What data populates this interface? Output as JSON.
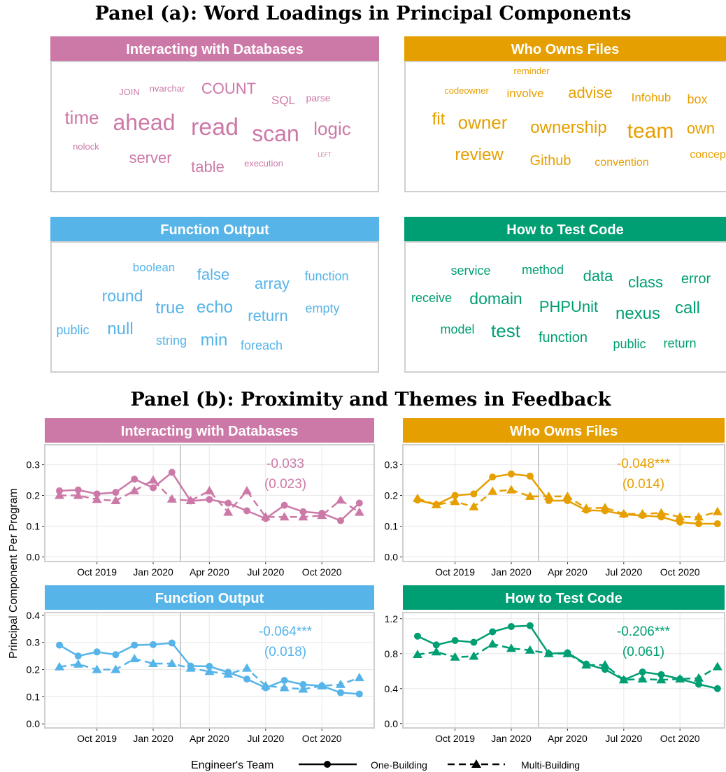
{
  "panel_a_title": "Panel (a): Word Loadings in Principal Components",
  "word_clouds": [
    {
      "title": "Interacting with Databases",
      "color": "#cc79a7",
      "words": [
        "JOIN",
        "nvarchar",
        "COUNT",
        "SQL",
        "parse",
        "time",
        "ahead",
        "read",
        "scan",
        "logic",
        "nolock",
        "server",
        "table",
        "execution",
        "LEFT"
      ]
    },
    {
      "title": "Who Owns Files",
      "color": "#e69f00",
      "words": [
        "reminder",
        "codeowner",
        "involve",
        "advise",
        "Infohub",
        "box",
        "fit",
        "owner",
        "ownership",
        "team",
        "own",
        "review",
        "Github",
        "convention",
        "concep"
      ]
    },
    {
      "title": "Function Output",
      "color": "#56b4e9",
      "words": [
        "boolean",
        "false",
        "array",
        "function",
        "round",
        "true",
        "echo",
        "return",
        "empty",
        "public",
        "null",
        "string",
        "min",
        "foreach"
      ]
    },
    {
      "title": "How to Test Code",
      "color": "#009e73",
      "words": [
        "service",
        "method",
        "data",
        "class",
        "error",
        "receive",
        "domain",
        "PHPUnit",
        "nexus",
        "call",
        "model",
        "test",
        "function",
        "public",
        "return"
      ]
    }
  ],
  "panel_b_title": "Panel (b): Proximity and Themes in Feedback",
  "y_label": "Principal Component Per Program",
  "legend_title": "Engineer's Team",
  "chart_data": [
    {
      "type": "line",
      "title": "Interacting with Databases",
      "color": "#cc79a7",
      "categories": [
        null,
        null,
        "Oct 2019",
        null,
        null,
        "Jan 2020",
        null,
        null,
        "Apr 2020",
        null,
        null,
        "Jul 2020",
        null,
        null,
        "Oct 2020",
        null,
        null
      ],
      "series": [
        {
          "name": "One-Building",
          "color": "#cc79a7",
          "values": [
            0.215,
            0.218,
            0.205,
            0.21,
            0.253,
            0.225,
            0.275,
            0.182,
            0.187,
            0.175,
            0.15,
            0.125,
            0.168,
            0.147,
            0.142,
            0.118,
            0.175
          ]
        },
        {
          "name": "Multi-Building",
          "color": "#cc79a7",
          "values": [
            0.2,
            0.2,
            0.187,
            0.183,
            0.215,
            0.25,
            0.188,
            0.183,
            0.215,
            0.145,
            0.215,
            0.13,
            0.13,
            0.13,
            0.135,
            0.185,
            0.145
          ]
        }
      ],
      "ylim": [
        -0.015,
        0.365
      ],
      "yticks": [
        {
          "value": 0,
          "label": "0.0"
        },
        0.1,
        0.2,
        0.3
      ],
      "grid": true,
      "annotations": [
        "-0.033",
        "(0.023)"
      ]
    },
    {
      "type": "line",
      "title": "Who Owns Files",
      "color": "#e69f00",
      "categories": [
        null,
        null,
        "Oct 2019",
        null,
        null,
        "Jan 2020",
        null,
        null,
        "Apr 2020",
        null,
        null,
        "Jul 2020",
        null,
        null,
        "Oct 2020",
        null,
        null
      ],
      "series": [
        {
          "name": "One-Building",
          "color": "#e69f00",
          "values": [
            0.185,
            0.17,
            0.2,
            0.205,
            0.26,
            0.27,
            0.263,
            0.183,
            0.183,
            0.152,
            0.15,
            0.138,
            0.135,
            0.13,
            0.113,
            0.108,
            0.108
          ]
        },
        {
          "name": "Multi-Building",
          "color": "#e69f00",
          "values": [
            0.19,
            0.17,
            0.18,
            0.163,
            0.213,
            0.218,
            0.197,
            0.197,
            0.197,
            0.158,
            0.16,
            0.14,
            0.14,
            0.143,
            0.13,
            0.13,
            0.147
          ]
        }
      ],
      "ylim": [
        -0.015,
        0.365
      ],
      "yticks": [
        {
          "value": 0,
          "label": "0.0"
        },
        0.1,
        0.2,
        0.3
      ],
      "grid": true,
      "annotations": [
        "-0.048***",
        "(0.014)"
      ]
    },
    {
      "type": "line",
      "title": "Function Output",
      "color": "#56b4e9",
      "categories": [
        null,
        null,
        "Oct 2019",
        null,
        null,
        "Jan 2020",
        null,
        null,
        "Apr 2020",
        null,
        null,
        "Jul 2020",
        null,
        null,
        "Oct 2020",
        null,
        null
      ],
      "series": [
        {
          "name": "One-Building",
          "color": "#56b4e9",
          "values": [
            0.29,
            0.25,
            0.265,
            0.255,
            0.29,
            0.292,
            0.298,
            0.213,
            0.212,
            0.19,
            0.165,
            0.133,
            0.16,
            0.145,
            0.14,
            0.115,
            0.11
          ]
        },
        {
          "name": "Multi-Building",
          "color": "#56b4e9",
          "values": [
            0.21,
            0.22,
            0.2,
            0.2,
            0.24,
            0.222,
            0.222,
            0.205,
            0.193,
            0.183,
            0.205,
            0.14,
            0.133,
            0.128,
            0.14,
            0.145,
            0.17
          ]
        }
      ],
      "ylim": [
        -0.015,
        0.41
      ],
      "yticks": [
        {
          "value": 0,
          "label": "0.0"
        },
        0.1,
        0.2,
        0.3,
        0.4
      ],
      "grid": true,
      "annotations": [
        "-0.064***",
        "(0.018)"
      ]
    },
    {
      "type": "line",
      "title": "How to Test Code",
      "color": "#009e73",
      "categories": [
        null,
        null,
        "Oct 2019",
        null,
        null,
        "Jan 2020",
        null,
        null,
        "Apr 2020",
        null,
        null,
        "Jul 2020",
        null,
        null,
        "Oct 2020",
        null,
        null
      ],
      "series": [
        {
          "name": "One-Building",
          "color": "#009e73",
          "values": [
            1.0,
            0.9,
            0.95,
            0.93,
            1.05,
            1.11,
            1.12,
            0.8,
            0.81,
            0.68,
            0.62,
            0.5,
            0.59,
            0.56,
            0.51,
            0.45,
            0.4
          ]
        },
        {
          "name": "Multi-Building",
          "color": "#009e73",
          "values": [
            0.79,
            0.82,
            0.76,
            0.77,
            0.91,
            0.86,
            0.84,
            0.8,
            0.8,
            0.67,
            0.67,
            0.5,
            0.51,
            0.5,
            0.51,
            0.52,
            0.65
          ]
        }
      ],
      "ylim": [
        -0.05,
        1.27
      ],
      "yticks": [
        {
          "value": 0,
          "label": "0.0"
        },
        0.4,
        0.8,
        1.2
      ],
      "grid": true,
      "annotations": [
        "-0.206***",
        "(0.061)"
      ]
    }
  ]
}
